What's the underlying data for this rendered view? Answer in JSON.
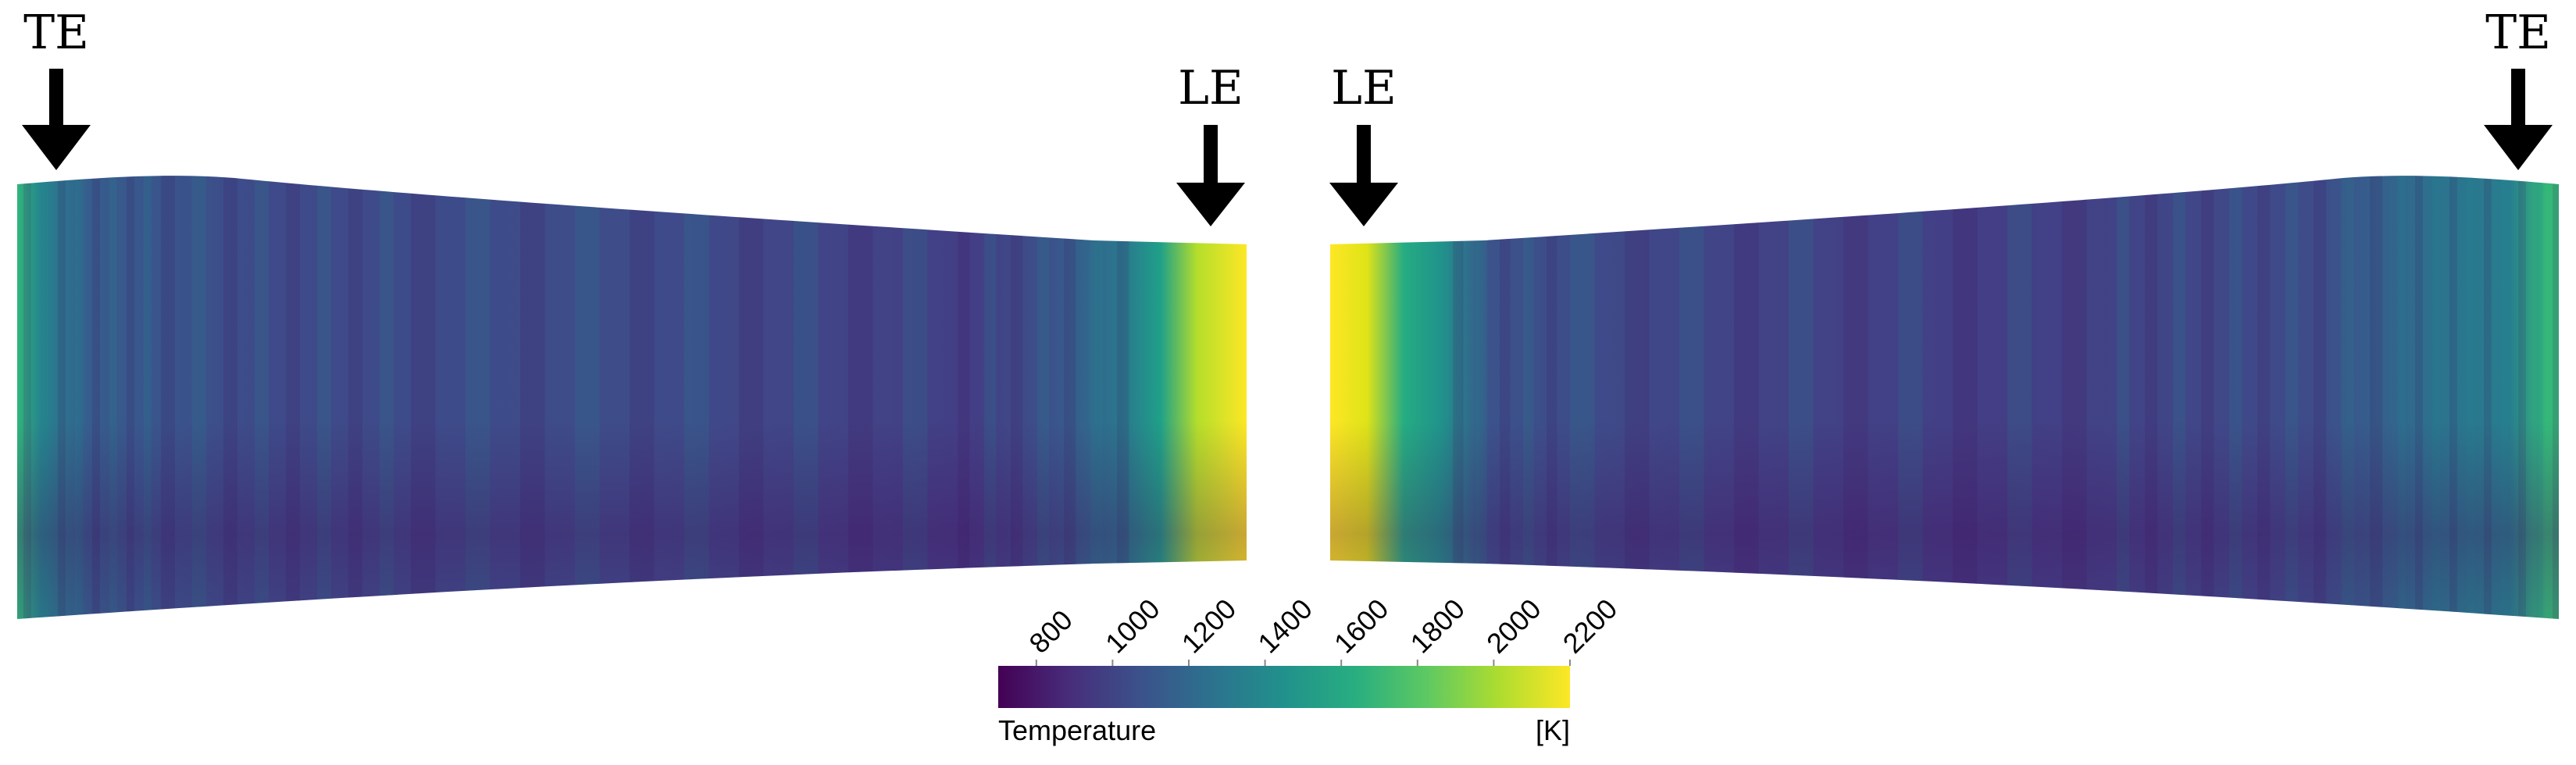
{
  "labels": {
    "trailing_edge": "TE",
    "leading_edge": "LE"
  },
  "colorbar": {
    "title": "Temperature",
    "unit": "[K]",
    "ticks": [
      "800",
      "1000",
      "1200",
      "1400",
      "1600",
      "1800",
      "2000",
      "2200"
    ],
    "range": [
      700,
      2200
    ],
    "colormap": "viridis",
    "stops": [
      "#440154",
      "#472d7b",
      "#3b528b",
      "#2c728e",
      "#21918c",
      "#28ae80",
      "#5ec962",
      "#addc30",
      "#fde725"
    ]
  },
  "colors": {
    "arrow": "#000000",
    "background": "#ffffff"
  }
}
